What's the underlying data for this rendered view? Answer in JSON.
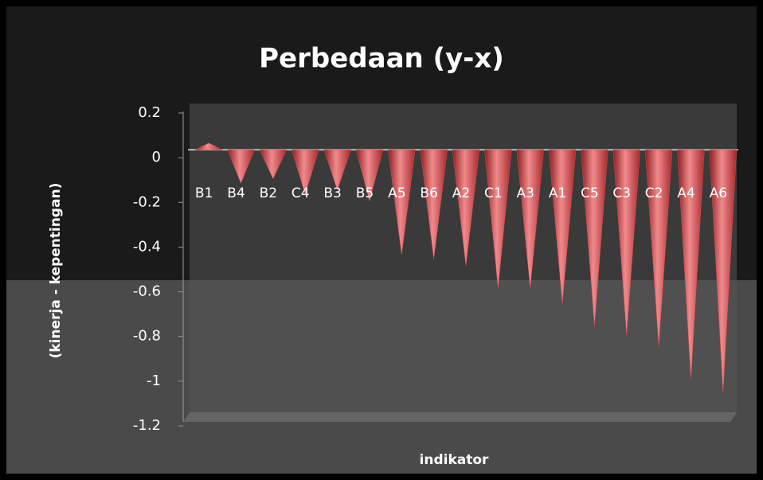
{
  "chart_data": {
    "type": "cone",
    "title": "Perbedaan (y-x)",
    "x_label": "indikator",
    "y_label": "(kinerja - kepentingan)",
    "categories": [
      "B1",
      "B4",
      "B2",
      "C4",
      "B3",
      "B5",
      "A5",
      "B6",
      "A2",
      "C1",
      "A3",
      "A1",
      "C5",
      "C3",
      "C2",
      "A4",
      "A6"
    ],
    "values": [
      0.03,
      -0.15,
      -0.13,
      -0.2,
      -0.18,
      -0.23,
      -0.47,
      -0.49,
      -0.52,
      -0.62,
      -0.62,
      -0.69,
      -0.79,
      -0.83,
      -0.88,
      -1.03,
      -1.09
    ],
    "color": "#d9464a",
    "ylim": [
      -1.2,
      0.2
    ],
    "yticks": [
      0.2,
      0,
      -0.2,
      -0.4,
      -0.6,
      -0.8,
      -1,
      -1.2
    ]
  }
}
